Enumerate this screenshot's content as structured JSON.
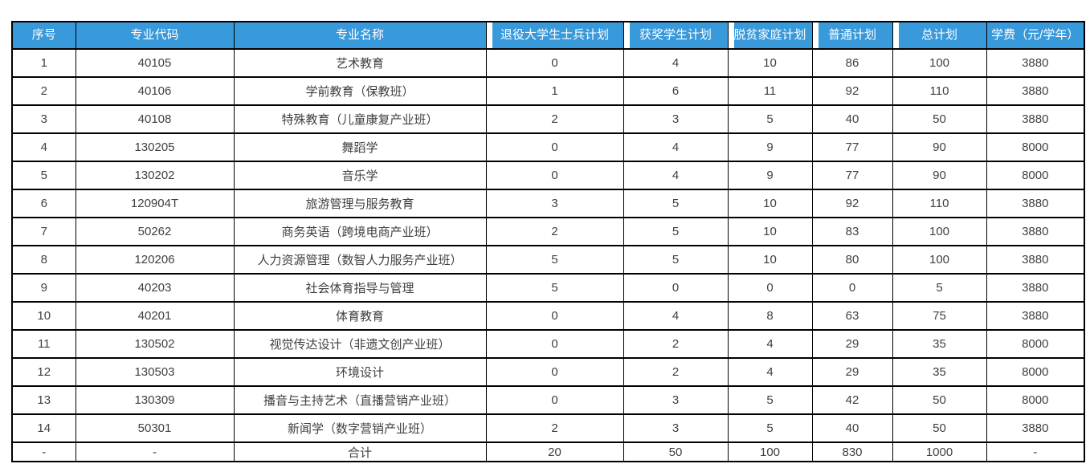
{
  "page": {
    "background": "#FFFFFF"
  },
  "table": {
    "columns": [
      "序号",
      "专业代码",
      "专业名称",
      "退役大学生士兵计划",
      "获奖学生计划",
      "脱贫家庭计划",
      "普通计划",
      "总计划",
      "学费（元/学年）"
    ],
    "rows": [
      [
        "1",
        "40105",
        "艺术教育",
        "0",
        "4",
        "10",
        "86",
        "100",
        "3880"
      ],
      [
        "2",
        "40106",
        "学前教育（保教班）",
        "1",
        "6",
        "11",
        "92",
        "110",
        "3880"
      ],
      [
        "3",
        "40108",
        "特殊教育（儿童康复产业班）",
        "2",
        "3",
        "5",
        "40",
        "50",
        "3880"
      ],
      [
        "4",
        "130205",
        "舞蹈学",
        "0",
        "4",
        "9",
        "77",
        "90",
        "8000"
      ],
      [
        "5",
        "130202",
        "音乐学",
        "0",
        "4",
        "9",
        "77",
        "90",
        "8000"
      ],
      [
        "6",
        "120904T",
        "旅游管理与服务教育",
        "3",
        "5",
        "10",
        "92",
        "110",
        "3880"
      ],
      [
        "7",
        "50262",
        "商务英语（跨境电商产业班）",
        "2",
        "5",
        "10",
        "83",
        "100",
        "3880"
      ],
      [
        "8",
        "120206",
        "人力资源管理（数智人力服务产业班）",
        "5",
        "5",
        "10",
        "80",
        "100",
        "3880"
      ],
      [
        "9",
        "40203",
        "社会体育指导与管理",
        "5",
        "0",
        "0",
        "0",
        "5",
        "3880"
      ],
      [
        "10",
        "40201",
        "体育教育",
        "0",
        "4",
        "8",
        "63",
        "75",
        "3880"
      ],
      [
        "11",
        "130502",
        "视觉传达设计（非遗文创产业班）",
        "0",
        "2",
        "4",
        "29",
        "35",
        "8000"
      ],
      [
        "12",
        "130503",
        "环境设计",
        "0",
        "2",
        "4",
        "29",
        "35",
        "8000"
      ],
      [
        "13",
        "130309",
        "播音与主持艺术（直播营销产业班）",
        "0",
        "3",
        "5",
        "42",
        "50",
        "8000"
      ],
      [
        "14",
        "50301",
        "新闻学（数字营销产业班）",
        "2",
        "3",
        "5",
        "40",
        "50",
        "3880"
      ]
    ],
    "total_row": [
      "-",
      "-",
      "合计",
      "20",
      "50",
      "100",
      "830",
      "1000",
      "-"
    ],
    "colors": {
      "header_bg": "#3899DB",
      "header_text": "#FFFFFF",
      "border": "#000000",
      "body_text": "#404040"
    }
  }
}
